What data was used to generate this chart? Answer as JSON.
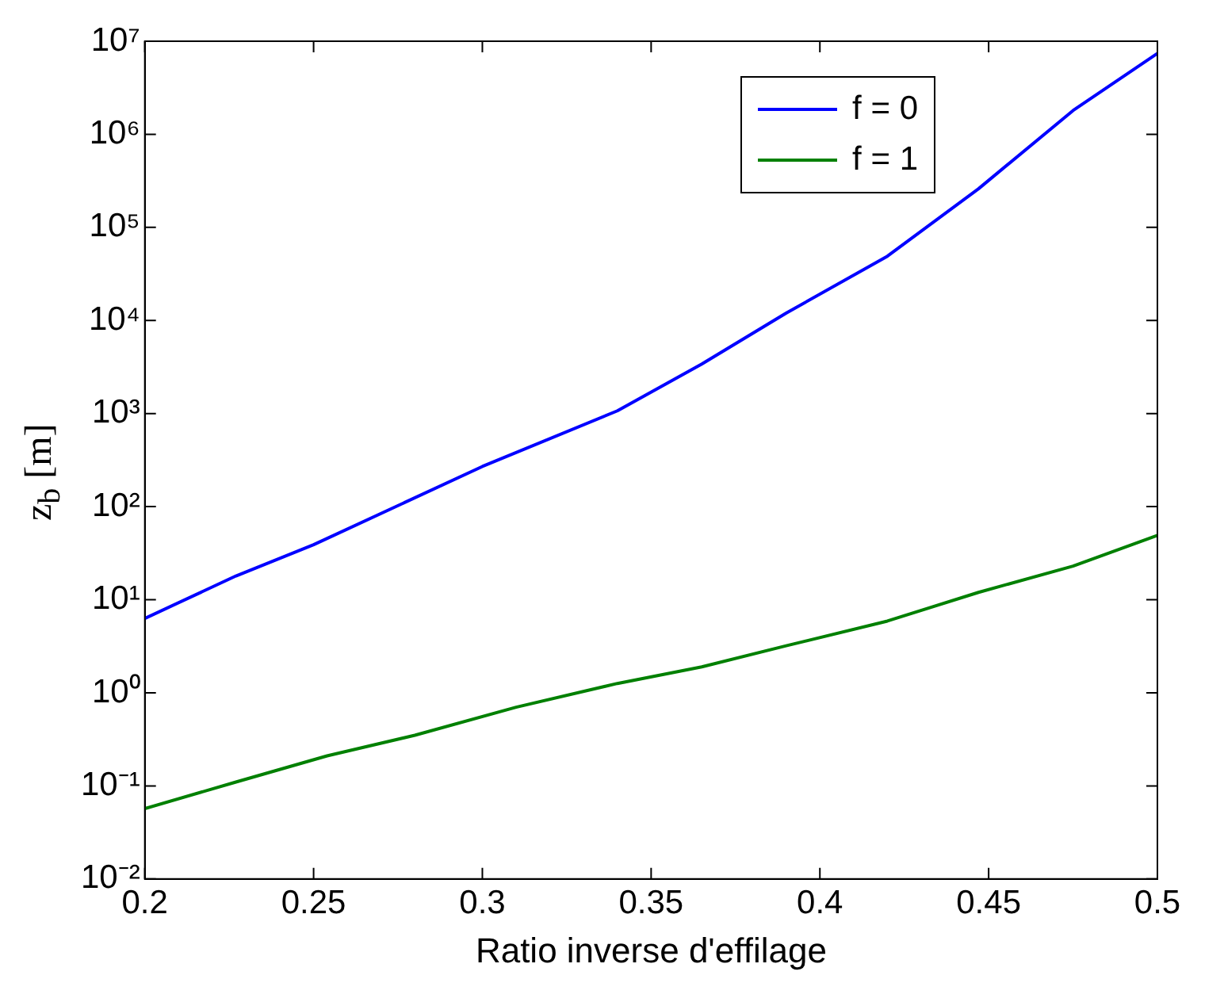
{
  "chart_data": {
    "type": "line",
    "xlabel": "Ratio inverse d'effilage",
    "ylabel": "z$_{b}$ [m]",
    "series": [
      {
        "name": "f = 0",
        "color": "#0000ff",
        "x": [
          0.2,
          0.227,
          0.25,
          0.3,
          0.34,
          0.365,
          0.39,
          0.42,
          0.447,
          0.475,
          0.5
        ],
        "values": [
          6.3,
          18,
          39,
          270,
          1070,
          3400,
          12000,
          49000,
          260000,
          1800000,
          7400000
        ]
      },
      {
        "name": "f = 1",
        "color": "#008000",
        "x": [
          0.2,
          0.227,
          0.254,
          0.28,
          0.31,
          0.34,
          0.365,
          0.39,
          0.42,
          0.447,
          0.475,
          0.5
        ],
        "values": [
          0.057,
          0.11,
          0.21,
          0.35,
          0.7,
          1.26,
          1.9,
          3.2,
          5.9,
          12,
          23,
          49
        ]
      }
    ],
    "xlim": [
      0.2,
      0.5
    ],
    "xticks": [
      0.2,
      0.25,
      0.3,
      0.35,
      0.4,
      0.45,
      0.5
    ],
    "ylim": [
      0.01,
      10000000
    ],
    "yticks": [
      {
        "value": 0.01,
        "label": "10⁻²"
      },
      {
        "value": 0.1,
        "label": "10⁻¹"
      },
      {
        "value": 1,
        "label": "10⁰"
      },
      {
        "value": 10,
        "label": "10¹"
      },
      {
        "value": 100,
        "label": "10²"
      },
      {
        "value": 1000,
        "label": "10³"
      },
      {
        "value": 10000,
        "label": "10⁴"
      },
      {
        "value": 100000,
        "label": "10⁵"
      },
      {
        "value": 1000000,
        "label": "10⁶"
      },
      {
        "value": 10000000,
        "label": "10⁷"
      }
    ],
    "log": "y",
    "grid": false,
    "legend": "top right",
    "marker": "none",
    "line_style": "solid"
  }
}
